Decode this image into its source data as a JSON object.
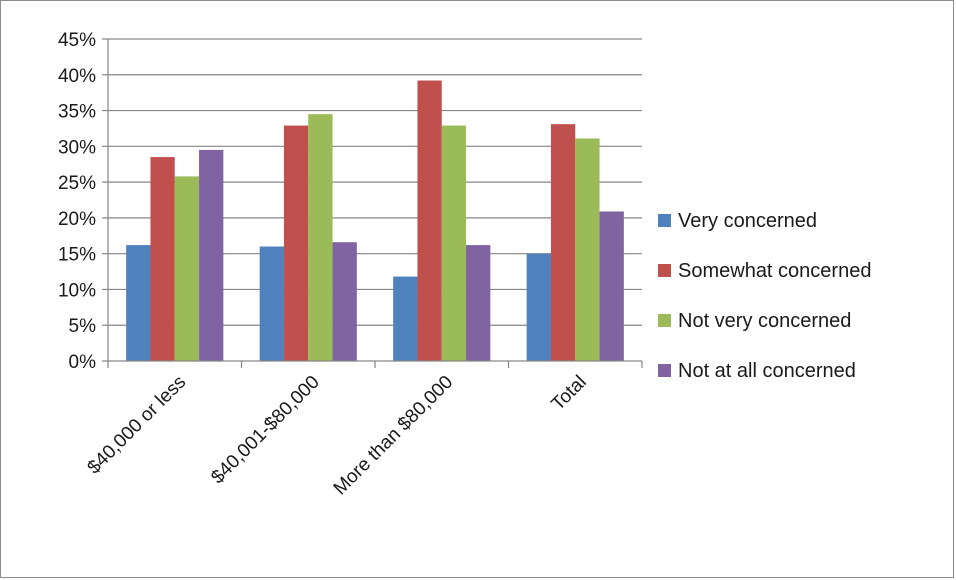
{
  "chart_data": {
    "type": "bar",
    "categories": [
      "$40,000 or less",
      "$40,001-$80,000",
      "More than $80,000",
      "Total"
    ],
    "series": [
      {
        "name": "Very concerned",
        "color": "#4f81bd",
        "values": [
          16.2,
          16.0,
          11.8,
          15.0
        ]
      },
      {
        "name": "Somewhat concerned",
        "color": "#c0504d",
        "values": [
          28.5,
          32.9,
          39.2,
          33.1
        ]
      },
      {
        "name": "Not very concerned",
        "color": "#9bbb59",
        "values": [
          25.8,
          34.5,
          32.9,
          31.1
        ]
      },
      {
        "name": "Not at all concerned",
        "color": "#8064a2",
        "values": [
          29.5,
          16.6,
          16.2,
          20.9
        ]
      }
    ],
    "y_ticks": [
      "0%",
      "5%",
      "10%",
      "15%",
      "20%",
      "25%",
      "30%",
      "35%",
      "40%",
      "45%"
    ],
    "ylim": [
      0,
      45
    ],
    "y_unit": "%",
    "grid": true,
    "legend_position": "right",
    "title": "",
    "xlabel": "",
    "ylabel": ""
  }
}
